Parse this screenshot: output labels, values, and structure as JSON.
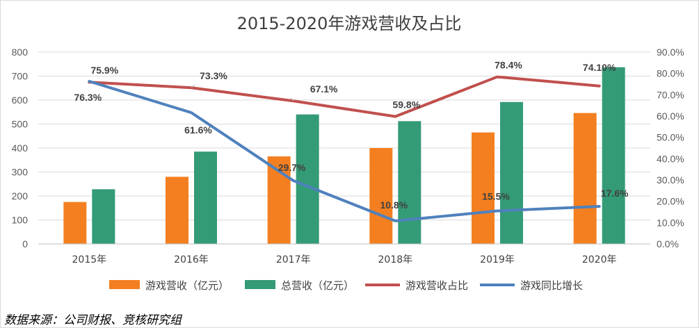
{
  "chart_data": {
    "type": "bar",
    "title": "2015-2020年游戏营收及占比",
    "categories": [
      "2015年",
      "2016年",
      "2017年",
      "2018年",
      "2019年",
      "2020年"
    ],
    "series": [
      {
        "name": "游戏营收（亿元）",
        "kind": "bar",
        "axis": "left",
        "color": "#F47F20",
        "values": [
          175,
          280,
          365,
          400,
          465,
          546
        ]
      },
      {
        "name": "总营收（亿元）",
        "kind": "bar",
        "axis": "left",
        "color": "#339B76",
        "values": [
          228,
          385,
          540,
          512,
          592,
          737
        ]
      },
      {
        "name": "游戏营收占比",
        "kind": "line",
        "axis": "right",
        "color": "#C0504D",
        "values": [
          75.9,
          73.3,
          67.1,
          59.8,
          78.4,
          74.1
        ],
        "labels": [
          "75.9%",
          "73.3%",
          "67.1%",
          "59.8%",
          "78.4%",
          "74.10%"
        ]
      },
      {
        "name": "游戏同比增长",
        "kind": "line",
        "axis": "right",
        "color": "#4F81BD",
        "values": [
          76.3,
          61.6,
          29.7,
          10.8,
          15.5,
          17.6
        ],
        "labels": [
          "76.3%",
          "61.6%",
          "29.7%",
          "10.8%",
          "15.5%",
          "17.6%"
        ]
      }
    ],
    "y_left": {
      "min": 0,
      "max": 800,
      "step": 100,
      "ticks": [
        "0",
        "100",
        "200",
        "300",
        "400",
        "500",
        "600",
        "700",
        "800"
      ]
    },
    "y_right": {
      "min": 0,
      "max": 90,
      "step": 10,
      "ticks": [
        "0.0%",
        "10.0%",
        "20.0%",
        "30.0%",
        "40.0%",
        "50.0%",
        "60.0%",
        "70.0%",
        "80.0%",
        "90.0%"
      ]
    },
    "grid": true,
    "legend_position": "bottom"
  },
  "source_note": "数据来源：公司财报、竞核研究组"
}
